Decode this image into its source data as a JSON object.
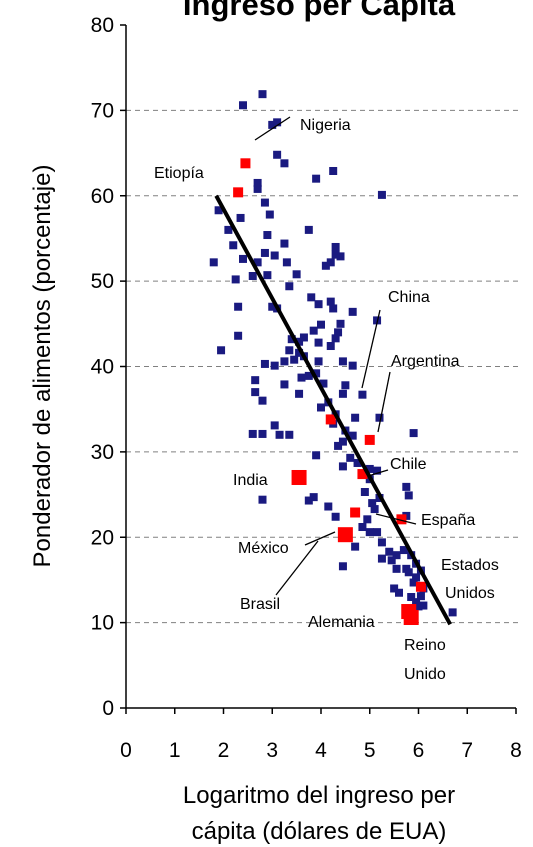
{
  "chart_data": {
    "type": "scatter",
    "title": "Ingreso per Cápita",
    "xlabel_lines": [
      "Logaritmo del ingreso per",
      "cápita (dólares de EUA)"
    ],
    "ylabel": "Ponderador de alimentos (porcentaje)",
    "xlim": [
      0,
      8
    ],
    "ylim": [
      0,
      80
    ],
    "x_ticks": [
      "0",
      "1",
      "2",
      "3",
      "4",
      "5",
      "6",
      "7",
      "8"
    ],
    "y_ticks": [
      "0",
      "10",
      "20",
      "30",
      "40",
      "50",
      "60",
      "70",
      "80"
    ],
    "grid": "horizontal dashed",
    "colors": {
      "countries": "#1a1a80",
      "highlight": "#ff0000",
      "trend": "#000000",
      "grid": "#808080"
    },
    "trend_line": {
      "from": [
        1.85,
        60
      ],
      "to": [
        6.65,
        9.8
      ]
    },
    "series": [
      {
        "points": [
          [
            2.4,
            70.6
          ],
          [
            2.8,
            71.9
          ],
          [
            3.0,
            68.3
          ],
          [
            3.1,
            68.6
          ],
          [
            3.1,
            64.8
          ],
          [
            3.25,
            63.8
          ],
          [
            4.25,
            62.9
          ],
          [
            3.9,
            62.0
          ],
          [
            5.25,
            60.1
          ],
          [
            2.7,
            60.8
          ],
          [
            2.7,
            61.5
          ],
          [
            1.9,
            58.3
          ],
          [
            2.1,
            56.0
          ],
          [
            2.2,
            54.2
          ],
          [
            2.35,
            57.4
          ],
          [
            2.85,
            59.2
          ],
          [
            2.95,
            57.8
          ],
          [
            2.9,
            55.4
          ],
          [
            3.25,
            54.4
          ],
          [
            3.05,
            53.0
          ],
          [
            2.85,
            53.3
          ],
          [
            3.3,
            52.2
          ],
          [
            2.25,
            50.2
          ],
          [
            2.6,
            50.6
          ],
          [
            2.7,
            52.2
          ],
          [
            3.5,
            50.8
          ],
          [
            3.35,
            49.4
          ],
          [
            3.75,
            56.0
          ],
          [
            4.1,
            51.8
          ],
          [
            4.2,
            52.2
          ],
          [
            4.3,
            54.0
          ],
          [
            4.4,
            52.9
          ],
          [
            4.3,
            53.1
          ],
          [
            1.8,
            52.2
          ],
          [
            2.4,
            52.6
          ],
          [
            3.8,
            48.1
          ],
          [
            3.95,
            47.3
          ],
          [
            4.2,
            47.6
          ],
          [
            4.25,
            46.8
          ],
          [
            4.4,
            45.0
          ],
          [
            4.35,
            44.0
          ],
          [
            4.0,
            44.9
          ],
          [
            3.85,
            44.2
          ],
          [
            3.95,
            42.8
          ],
          [
            4.2,
            42.4
          ],
          [
            4.3,
            43.3
          ],
          [
            4.65,
            46.4
          ],
          [
            5.15,
            45.4
          ],
          [
            4.45,
            40.6
          ],
          [
            4.65,
            40.1
          ],
          [
            3.0,
            47.0
          ],
          [
            3.1,
            46.8
          ],
          [
            2.9,
            50.7
          ],
          [
            2.3,
            47.0
          ],
          [
            2.3,
            43.6
          ],
          [
            1.95,
            41.9
          ],
          [
            2.85,
            40.3
          ],
          [
            3.05,
            40.1
          ],
          [
            3.35,
            41.9
          ],
          [
            3.55,
            42.9
          ],
          [
            3.65,
            41.2
          ],
          [
            3.45,
            40.8
          ],
          [
            3.25,
            40.6
          ],
          [
            3.6,
            38.7
          ],
          [
            3.95,
            40.6
          ],
          [
            4.05,
            38.0
          ],
          [
            3.9,
            39.2
          ],
          [
            3.75,
            38.9
          ],
          [
            2.65,
            38.4
          ],
          [
            2.65,
            37.0
          ],
          [
            2.8,
            36.0
          ],
          [
            3.25,
            37.9
          ],
          [
            3.55,
            36.8
          ],
          [
            4.0,
            35.2
          ],
          [
            4.15,
            35.8
          ],
          [
            4.3,
            34.4
          ],
          [
            4.5,
            37.8
          ],
          [
            4.45,
            36.8
          ],
          [
            4.85,
            36.7
          ],
          [
            4.7,
            34.0
          ],
          [
            5.2,
            34.0
          ],
          [
            4.25,
            33.3
          ],
          [
            4.5,
            32.5
          ],
          [
            4.65,
            31.9
          ],
          [
            4.45,
            31.2
          ],
          [
            4.35,
            30.7
          ],
          [
            4.6,
            29.3
          ],
          [
            4.45,
            28.3
          ],
          [
            4.75,
            28.7
          ],
          [
            5.0,
            28.0
          ],
          [
            5.15,
            27.8
          ],
          [
            5.0,
            26.8
          ],
          [
            4.9,
            25.3
          ],
          [
            5.05,
            24.0
          ],
          [
            5.2,
            24.6
          ],
          [
            5.1,
            23.3
          ],
          [
            4.95,
            22.1
          ],
          [
            4.85,
            21.2
          ],
          [
            5.0,
            20.6
          ],
          [
            5.15,
            20.6
          ],
          [
            5.25,
            19.4
          ],
          [
            5.4,
            18.3
          ],
          [
            5.25,
            17.5
          ],
          [
            5.45,
            17.3
          ],
          [
            5.55,
            17.9
          ],
          [
            5.7,
            18.5
          ],
          [
            5.85,
            17.9
          ],
          [
            5.95,
            16.9
          ],
          [
            5.75,
            16.3
          ],
          [
            5.8,
            15.9
          ],
          [
            5.9,
            14.7
          ],
          [
            5.95,
            15.3
          ],
          [
            6.05,
            16.1
          ],
          [
            6.1,
            14.0
          ],
          [
            6.05,
            13.1
          ],
          [
            5.85,
            13.0
          ],
          [
            5.95,
            12.4
          ],
          [
            6.0,
            11.9
          ],
          [
            5.5,
            14.0
          ],
          [
            5.6,
            13.5
          ],
          [
            5.8,
            24.9
          ],
          [
            5.75,
            25.9
          ],
          [
            5.75,
            22.5
          ],
          [
            5.9,
            32.2
          ],
          [
            5.55,
            16.3
          ],
          [
            6.7,
            11.2
          ],
          [
            6.1,
            12.0
          ],
          [
            2.6,
            32.1
          ],
          [
            2.8,
            32.1
          ],
          [
            3.05,
            33.1
          ],
          [
            3.15,
            32.0
          ],
          [
            3.35,
            32.0
          ],
          [
            3.9,
            29.6
          ],
          [
            2.8,
            24.4
          ],
          [
            3.75,
            24.3
          ],
          [
            3.85,
            24.7
          ],
          [
            4.15,
            23.6
          ],
          [
            4.3,
            22.4
          ],
          [
            4.45,
            16.6
          ],
          [
            4.7,
            18.9
          ],
          [
            3.65,
            43.4
          ],
          [
            3.4,
            43.2
          ],
          [
            3.55,
            41.6
          ]
        ]
      },
      {
        "points": [
          [
            2.45,
            63.8
          ],
          [
            2.3,
            60.4
          ],
          [
            4.2,
            33.8
          ],
          [
            5.0,
            31.4
          ],
          [
            4.85,
            27.4
          ],
          [
            4.7,
            22.9
          ],
          [
            5.65,
            22.1
          ],
          [
            6.05,
            14.2
          ]
        ]
      },
      {
        "points": [
          [
            3.55,
            27.0
          ],
          [
            4.5,
            20.3
          ],
          [
            5.8,
            11.3
          ],
          [
            5.85,
            10.6
          ]
        ]
      }
    ],
    "annotations": [
      {
        "text": "Nigeria"
      },
      {
        "text": "Etiopía"
      },
      {
        "text": "China"
      },
      {
        "text": "Argentina"
      },
      {
        "text": "Chile"
      },
      {
        "text": "India"
      },
      {
        "text": "España"
      },
      {
        "text": "México"
      },
      {
        "text": "Estados"
      },
      {
        "text": "Unidos"
      },
      {
        "text": "Brasil"
      },
      {
        "text": "Alemania"
      },
      {
        "text": "Reino"
      },
      {
        "text": "Unido"
      }
    ]
  }
}
